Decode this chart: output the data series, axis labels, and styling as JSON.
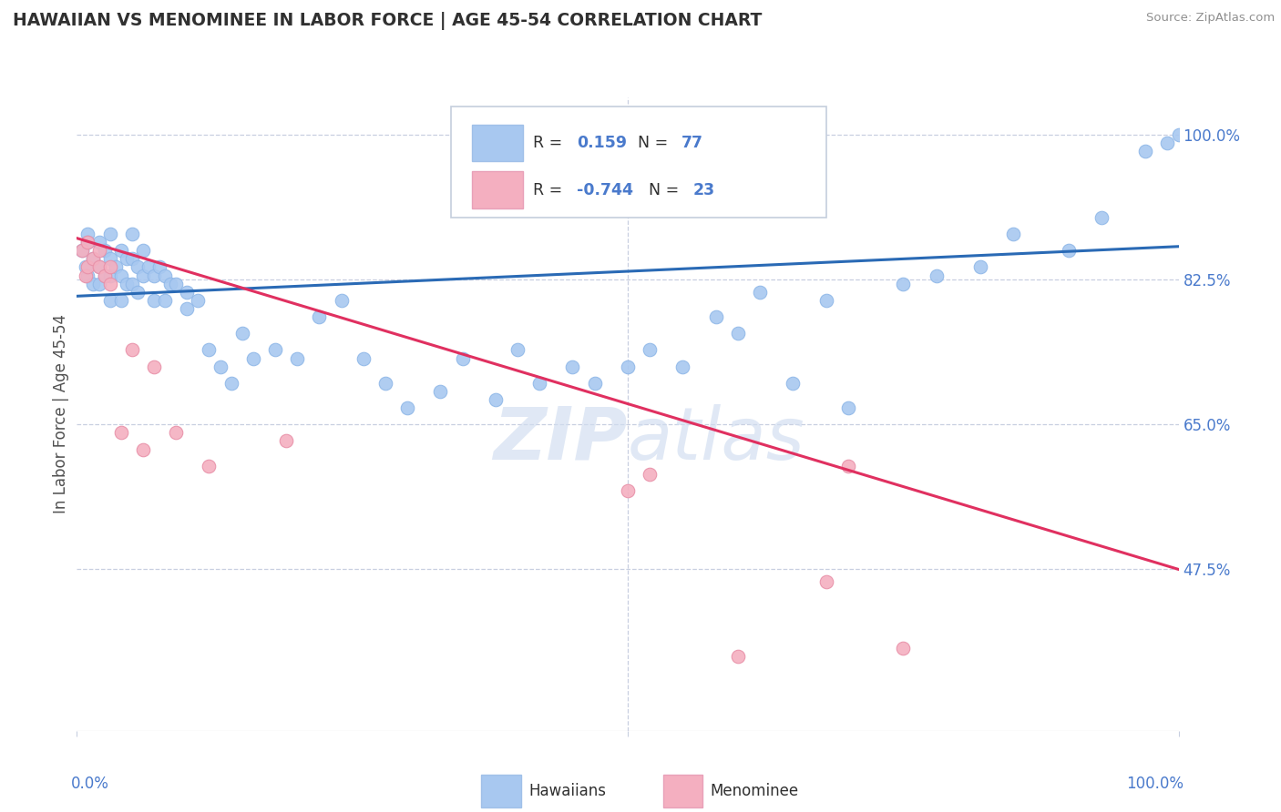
{
  "title": "HAWAIIAN VS MENOMINEE IN LABOR FORCE | AGE 45-54 CORRELATION CHART",
  "source_text": "Source: ZipAtlas.com",
  "ylabel": "In Labor Force | Age 45-54",
  "x_min": 0.0,
  "x_max": 1.0,
  "y_min": 0.28,
  "y_max": 1.045,
  "right_yticks": [
    1.0,
    0.825,
    0.65,
    0.475
  ],
  "right_yticklabels": [
    "100.0%",
    "82.5%",
    "65.0%",
    "47.5%"
  ],
  "bottom_xticklabels": [
    "0.0%",
    "100.0%"
  ],
  "legend_r_hawaiian": "0.159",
  "legend_n_hawaiian": "77",
  "legend_r_menominee": "-0.744",
  "legend_n_menominee": "23",
  "hawaiian_color": "#a8c8f0",
  "menominee_color": "#f4afc0",
  "hawaiian_line_color": "#2a6ab5",
  "menominee_line_color": "#e03060",
  "watermark_color": "#d0ddf0",
  "background_color": "#ffffff",
  "grid_color": "#c8cfe0",
  "title_color": "#303030",
  "tick_label_color": "#4a7acc",
  "hawaiian_scatter_x": [
    0.005,
    0.008,
    0.01,
    0.01,
    0.01,
    0.015,
    0.015,
    0.02,
    0.02,
    0.02,
    0.025,
    0.025,
    0.03,
    0.03,
    0.03,
    0.03,
    0.035,
    0.04,
    0.04,
    0.04,
    0.045,
    0.045,
    0.05,
    0.05,
    0.05,
    0.055,
    0.055,
    0.06,
    0.06,
    0.065,
    0.07,
    0.07,
    0.075,
    0.08,
    0.08,
    0.085,
    0.09,
    0.1,
    0.1,
    0.11,
    0.12,
    0.13,
    0.14,
    0.15,
    0.16,
    0.18,
    0.2,
    0.22,
    0.24,
    0.26,
    0.28,
    0.3,
    0.33,
    0.35,
    0.38,
    0.4,
    0.42,
    0.45,
    0.47,
    0.5,
    0.52,
    0.55,
    0.58,
    0.6,
    0.62,
    0.65,
    0.68,
    0.7,
    0.75,
    0.78,
    0.82,
    0.85,
    0.9,
    0.93,
    0.97,
    0.99,
    1.0
  ],
  "hawaiian_scatter_y": [
    0.86,
    0.84,
    0.88,
    0.83,
    0.87,
    0.85,
    0.82,
    0.87,
    0.84,
    0.82,
    0.86,
    0.83,
    0.88,
    0.85,
    0.83,
    0.8,
    0.84,
    0.86,
    0.83,
    0.8,
    0.85,
    0.82,
    0.88,
    0.85,
    0.82,
    0.84,
    0.81,
    0.86,
    0.83,
    0.84,
    0.83,
    0.8,
    0.84,
    0.83,
    0.8,
    0.82,
    0.82,
    0.81,
    0.79,
    0.8,
    0.74,
    0.72,
    0.7,
    0.76,
    0.73,
    0.74,
    0.73,
    0.78,
    0.8,
    0.73,
    0.7,
    0.67,
    0.69,
    0.73,
    0.68,
    0.74,
    0.7,
    0.72,
    0.7,
    0.72,
    0.74,
    0.72,
    0.78,
    0.76,
    0.81,
    0.7,
    0.8,
    0.67,
    0.82,
    0.83,
    0.84,
    0.88,
    0.86,
    0.9,
    0.98,
    0.99,
    1.0
  ],
  "menominee_scatter_x": [
    0.005,
    0.008,
    0.01,
    0.01,
    0.015,
    0.02,
    0.02,
    0.025,
    0.03,
    0.03,
    0.04,
    0.05,
    0.06,
    0.07,
    0.09,
    0.12,
    0.19,
    0.5,
    0.52,
    0.6,
    0.68,
    0.7,
    0.75
  ],
  "menominee_scatter_y": [
    0.86,
    0.83,
    0.87,
    0.84,
    0.85,
    0.84,
    0.86,
    0.83,
    0.82,
    0.84,
    0.64,
    0.74,
    0.62,
    0.72,
    0.64,
    0.6,
    0.63,
    0.57,
    0.59,
    0.37,
    0.46,
    0.6,
    0.38
  ],
  "hawaiian_trend_x": [
    0.0,
    1.0
  ],
  "hawaiian_trend_y": [
    0.805,
    0.865
  ],
  "menominee_trend_x": [
    0.0,
    1.0
  ],
  "menominee_trend_y": [
    0.875,
    0.475
  ]
}
